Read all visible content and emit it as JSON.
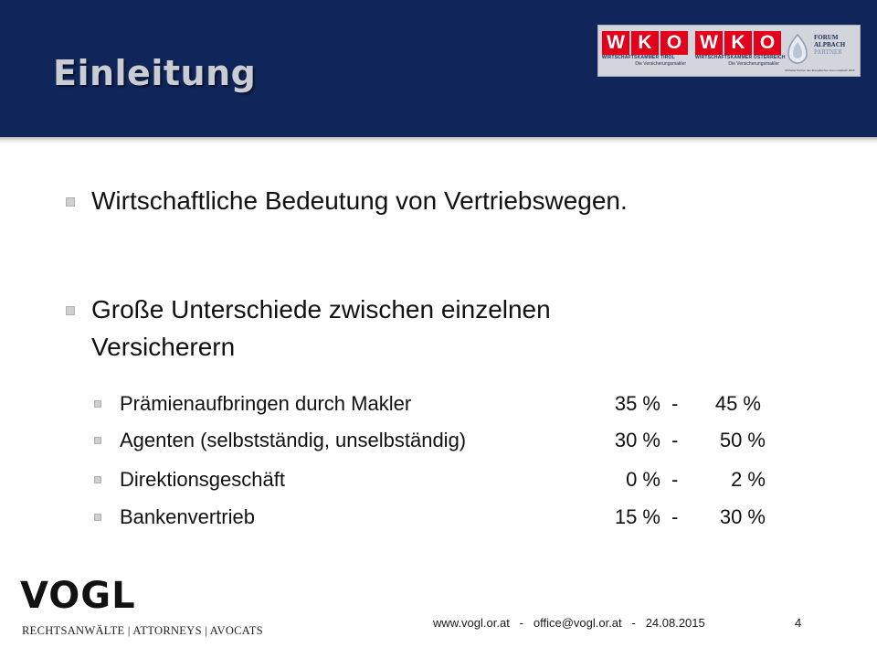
{
  "slide": {
    "title": "Einleitung",
    "bullets": [
      "Wirtschaftliche Bedeutung von Vertriebswegen.",
      "Große Unterschiede zwischen einzelnen",
      "Versicherern"
    ],
    "shares": [
      {
        "label": "Prämienaufbringen durch Makler",
        "from": "35 %",
        "dash": "-",
        "to": "45 %"
      },
      {
        "label": "Agenten (selbstständig, unselbständig)",
        "from": "30 %",
        "dash": "-",
        "to": "50 %"
      },
      {
        "label": "Direktionsgeschäft",
        "from": "0 %",
        "dash": "-",
        "to": "2 %"
      },
      {
        "label": "Bankenvertrieb",
        "from": "15 %",
        "dash": "-",
        "to": "30 %"
      }
    ]
  },
  "logos": {
    "wko_letters": [
      "W",
      "K",
      "O"
    ],
    "wko_tirol_sub": "WIRTSCHAFTSKAMMER TIROL",
    "wko_oesterreich_sub": "WIRTSCHAFTSKAMMER ÖSTERREICH",
    "wko_tagline": "Die Versicherungsmakler",
    "forum_line1": "FORUM",
    "forum_line2": "ALPBACH",
    "forum_line3": "PARTNER",
    "forum_small": "Offizieller Partner des Europäischen Forum Alpbach 2015",
    "colors": {
      "wko_red": "#e3001b",
      "header_blue": "#10265b"
    }
  },
  "footer": {
    "brand": "VOGL",
    "brand_sub": "RECHTSANWÄLTE | ATTORNEYS | AVOCATS",
    "website": "www.vogl.or.at",
    "sep1": "-",
    "email": "office@vogl.or.at",
    "sep2": "-",
    "date": "24.08.2015",
    "page": "4"
  }
}
